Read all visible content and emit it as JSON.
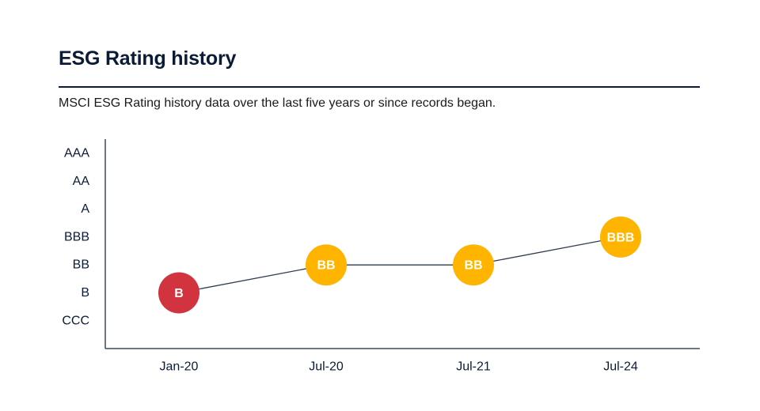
{
  "header": {
    "title": "ESG Rating history",
    "subtitle": "MSCI ESG Rating history data over the last five years or since records began."
  },
  "colors": {
    "axis": "#3b4a5e",
    "line": "#2e3b4e",
    "laggard": "#d1343e",
    "average": "#ffb400",
    "point_text": "#ffffff"
  },
  "chart_data": {
    "type": "line",
    "title": "ESG Rating history",
    "subtitle": "MSCI ESG Rating history data over the last five years or since records began.",
    "xlabel": "",
    "ylabel": "",
    "y_categories": [
      "AAA",
      "AA",
      "A",
      "BBB",
      "BB",
      "B",
      "CCC"
    ],
    "categories": [
      "Jan-20",
      "Jul-20",
      "Jul-21",
      "Jul-24"
    ],
    "series": [
      {
        "values": [
          "B",
          "BB",
          "BB",
          "BBB"
        ],
        "point_colors": [
          "laggard",
          "average",
          "average",
          "average"
        ]
      }
    ],
    "grid": false,
    "legend": "none"
  }
}
